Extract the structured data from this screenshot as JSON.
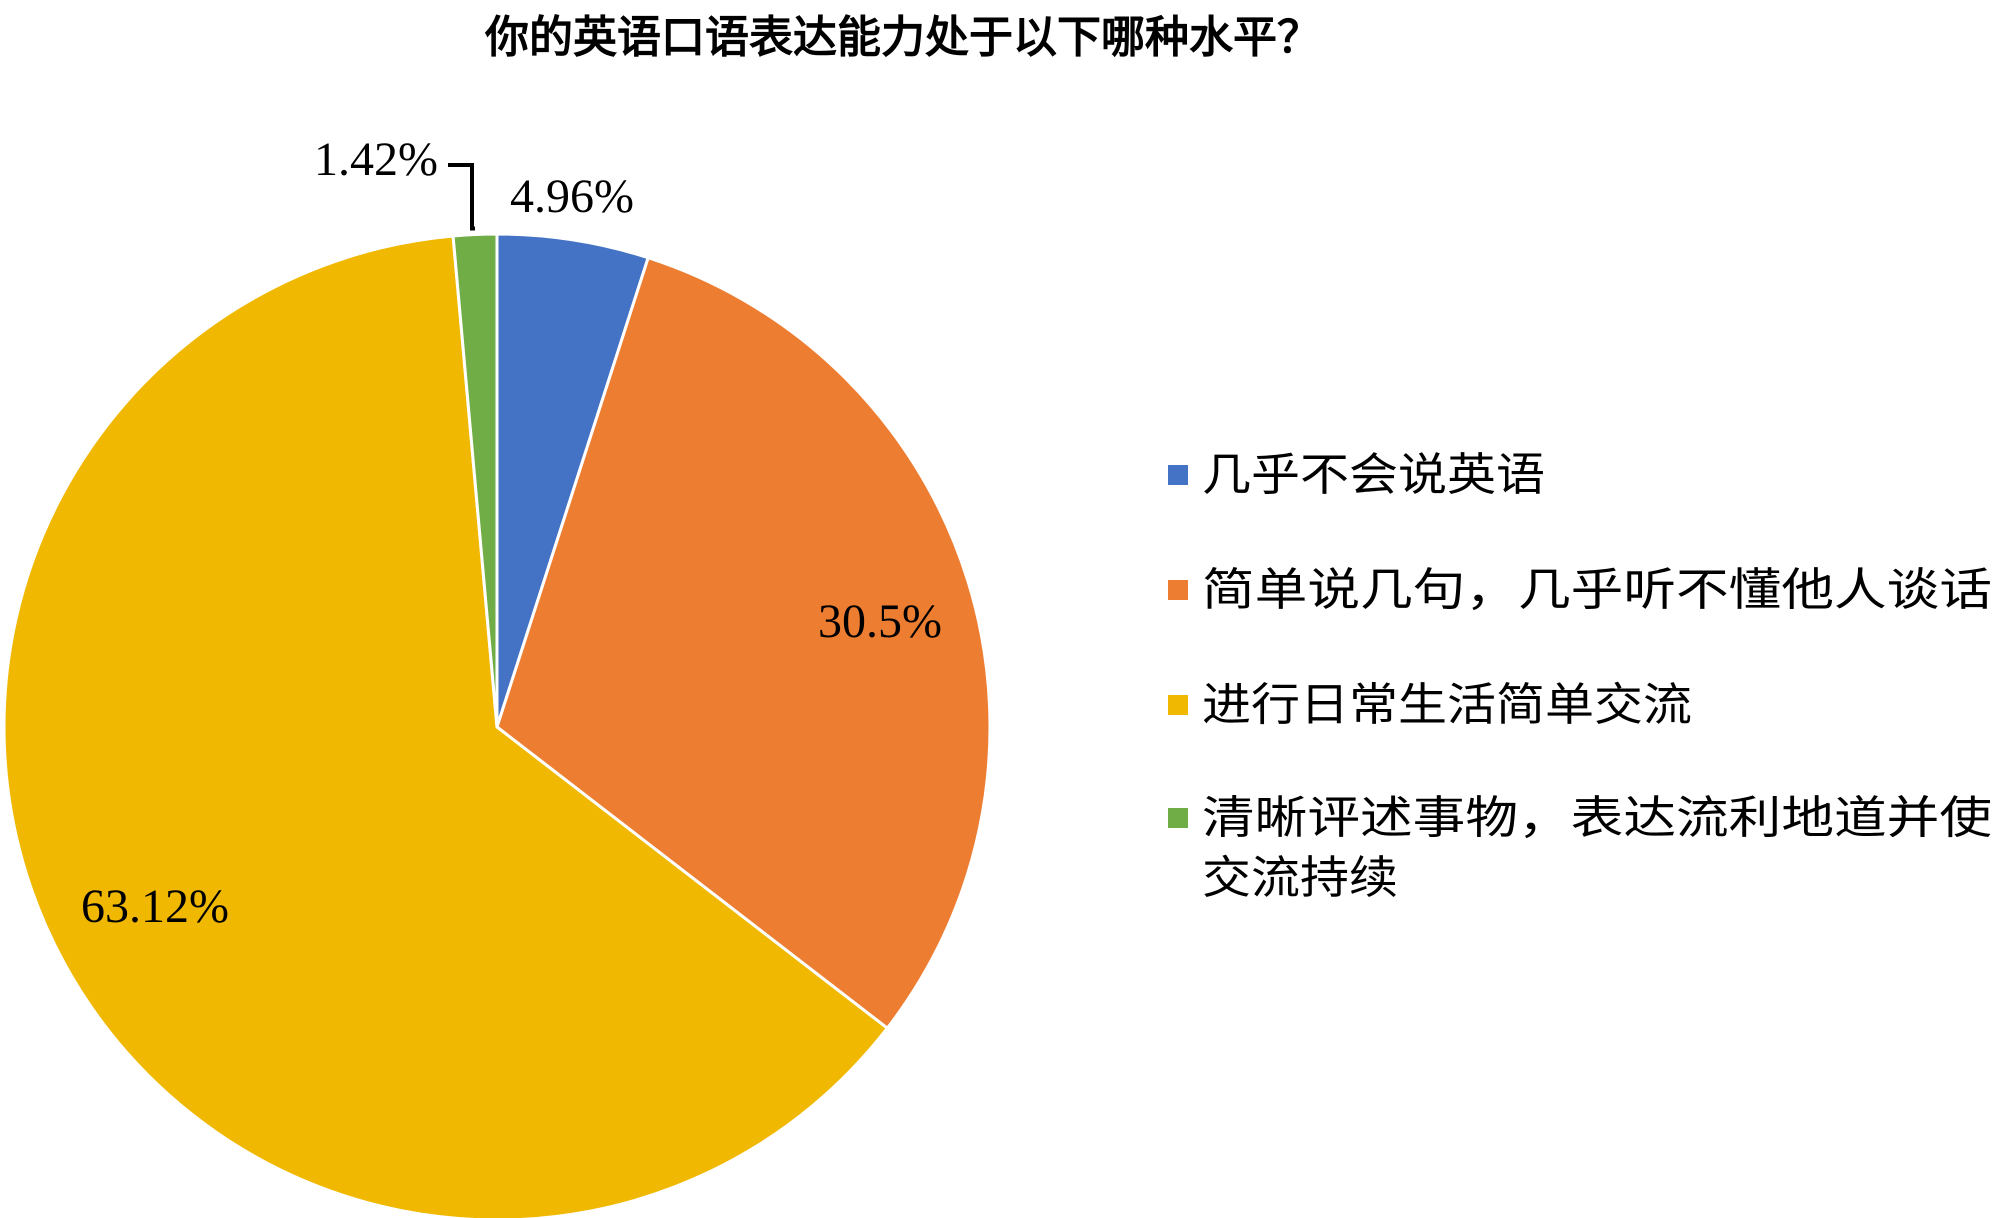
{
  "chart_data": {
    "type": "pie",
    "title": "你的英语口语表达能力处于以下哪种水平？",
    "categories": [
      "几乎不会说英语",
      "简单说几句，几乎听不懂他人谈话",
      "进行日常生活简单交流",
      "清晰评述事物，表达流利地道并使交流持续"
    ],
    "values": [
      4.96,
      30.5,
      63.12,
      1.42
    ],
    "data_labels": [
      "4.96%",
      "30.5%",
      "63.12%",
      "1.42%"
    ],
    "colors": [
      "#4472C4",
      "#ED7D31",
      "#F0B800",
      "#70AD47"
    ],
    "legend": {
      "position": "right",
      "lines": [
        [
          "几乎不会说英语"
        ],
        [
          "简单说几句，几乎听不懂他人谈话"
        ],
        [
          "进行日常生活简单交流"
        ],
        [
          "清晰评述事物，表达流利地道并使",
          "交流持续"
        ]
      ]
    }
  }
}
